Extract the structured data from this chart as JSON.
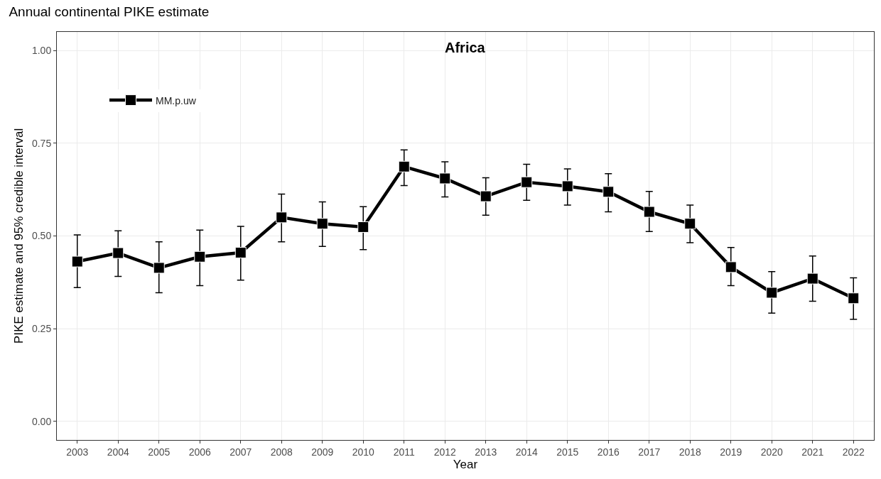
{
  "chart_data": {
    "type": "line",
    "title": "Annual continental PIKE estimate",
    "xlabel": "Year",
    "ylabel": "PIKE estimate and 95% credible interval",
    "annotations": [
      "Africa"
    ],
    "x": [
      2003,
      2004,
      2005,
      2006,
      2007,
      2008,
      2009,
      2010,
      2011,
      2012,
      2013,
      2014,
      2015,
      2016,
      2017,
      2018,
      2019,
      2020,
      2021,
      2022
    ],
    "series": [
      {
        "name": "MM.p.uw",
        "color": "#000000",
        "values": [
          0.431,
          0.454,
          0.414,
          0.444,
          0.455,
          0.55,
          0.533,
          0.524,
          0.687,
          0.655,
          0.607,
          0.645,
          0.634,
          0.619,
          0.565,
          0.533,
          0.416,
          0.347,
          0.385,
          0.332
        ],
        "errors": [
          [
            0.361,
            0.503
          ],
          [
            0.391,
            0.514
          ],
          [
            0.347,
            0.484
          ],
          [
            0.366,
            0.516
          ],
          [
            0.381,
            0.526
          ],
          [
            0.484,
            0.613
          ],
          [
            0.472,
            0.592
          ],
          [
            0.463,
            0.579
          ],
          [
            0.636,
            0.732
          ],
          [
            0.605,
            0.7
          ],
          [
            0.556,
            0.657
          ],
          [
            0.596,
            0.693
          ],
          [
            0.583,
            0.681
          ],
          [
            0.565,
            0.668
          ],
          [
            0.512,
            0.62
          ],
          [
            0.482,
            0.583
          ],
          [
            0.366,
            0.469
          ],
          [
            0.292,
            0.404
          ],
          [
            0.324,
            0.446
          ],
          [
            0.275,
            0.387
          ]
        ]
      }
    ],
    "xlim": [
      2002.5,
      2022.5
    ],
    "xticks": [
      2003,
      2004,
      2005,
      2006,
      2007,
      2008,
      2009,
      2010,
      2011,
      2012,
      2013,
      2014,
      2015,
      2016,
      2017,
      2018,
      2019,
      2020,
      2021,
      2022
    ],
    "ylim": [
      -0.05,
      1.05
    ],
    "yticks": [
      {
        "value": 0,
        "label": "0.00"
      },
      {
        "value": 0.25,
        "label": "0.25"
      },
      {
        "value": 0.5,
        "label": "0.50"
      },
      {
        "value": 0.75,
        "label": "0.75"
      },
      {
        "value": 1,
        "label": "1.00"
      }
    ],
    "grid": true,
    "legend": "top left",
    "marker": "square",
    "line_style": "solid"
  }
}
